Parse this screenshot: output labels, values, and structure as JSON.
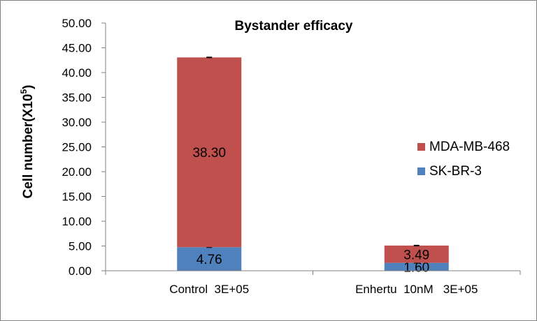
{
  "chart_data": {
    "type": "bar",
    "stacked": true,
    "title": "Bystander efficacy",
    "ylabel": "Cell number(X10",
    "ylabel_superscript": "5",
    "ylabel_close": ")",
    "xlabel": "",
    "ylim": [
      0,
      50
    ],
    "yticks": [
      "0.00",
      "5.00",
      "10.00",
      "15.00",
      "20.00",
      "25.00",
      "30.00",
      "35.00",
      "40.00",
      "45.00",
      "50.00"
    ],
    "categories": [
      "Control  3E+05",
      "Enhertu  10nM   3E+05"
    ],
    "series": [
      {
        "name": "SK-BR-3",
        "values": [
          4.76,
          1.6
        ],
        "labels": [
          "4.76",
          "1.60"
        ],
        "color": "#4F81BD"
      },
      {
        "name": "MDA-MB-468",
        "values": [
          38.3,
          3.49
        ],
        "labels": [
          "38.30",
          "3.49"
        ],
        "color": "#C0504D"
      }
    ],
    "grid": false,
    "legend_position": "right",
    "legend_order": [
      "MDA-MB-468",
      "SK-BR-3"
    ]
  }
}
